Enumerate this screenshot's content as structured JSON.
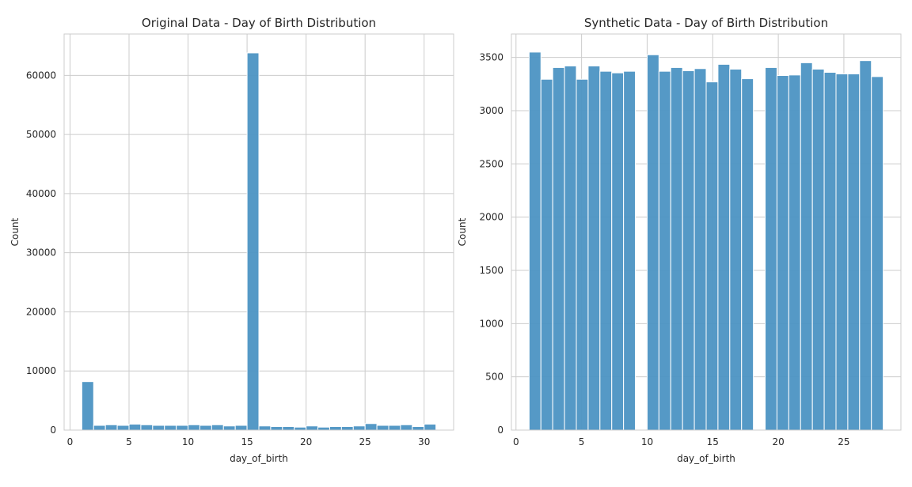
{
  "chart_data": [
    {
      "type": "bar",
      "title": "Original Data - Day of Birth Distribution",
      "xlabel": "day_of_birth",
      "ylabel": "Count",
      "xlim": [
        -0.5,
        32.5
      ],
      "ylim": [
        0,
        67000
      ],
      "xticks": [
        0,
        5,
        10,
        15,
        20,
        25,
        30
      ],
      "yticks": [
        0,
        10000,
        20000,
        30000,
        40000,
        50000,
        60000
      ],
      "grid": true,
      "color": "#4c93c3",
      "bins": [
        {
          "x0": 1.0,
          "x1": 2.0,
          "value": 8200
        },
        {
          "x0": 2.0,
          "x1": 3.0,
          "value": 800
        },
        {
          "x0": 3.0,
          "x1": 4.0,
          "value": 900
        },
        {
          "x0": 4.0,
          "x1": 5.0,
          "value": 800
        },
        {
          "x0": 5.0,
          "x1": 6.0,
          "value": 1000
        },
        {
          "x0": 6.0,
          "x1": 7.0,
          "value": 900
        },
        {
          "x0": 7.0,
          "x1": 8.0,
          "value": 800
        },
        {
          "x0": 8.0,
          "x1": 9.0,
          "value": 800
        },
        {
          "x0": 9.0,
          "x1": 10.0,
          "value": 800
        },
        {
          "x0": 10.0,
          "x1": 11.0,
          "value": 900
        },
        {
          "x0": 11.0,
          "x1": 12.0,
          "value": 800
        },
        {
          "x0": 12.0,
          "x1": 13.0,
          "value": 900
        },
        {
          "x0": 13.0,
          "x1": 14.0,
          "value": 700
        },
        {
          "x0": 14.0,
          "x1": 15.0,
          "value": 800
        },
        {
          "x0": 15.0,
          "x1": 16.0,
          "value": 63800
        },
        {
          "x0": 16.0,
          "x1": 17.0,
          "value": 700
        },
        {
          "x0": 17.0,
          "x1": 18.0,
          "value": 600
        },
        {
          "x0": 18.0,
          "x1": 19.0,
          "value": 600
        },
        {
          "x0": 19.0,
          "x1": 20.0,
          "value": 500
        },
        {
          "x0": 20.0,
          "x1": 21.0,
          "value": 700
        },
        {
          "x0": 21.0,
          "x1": 22.0,
          "value": 500
        },
        {
          "x0": 22.0,
          "x1": 23.0,
          "value": 600
        },
        {
          "x0": 23.0,
          "x1": 24.0,
          "value": 600
        },
        {
          "x0": 24.0,
          "x1": 25.0,
          "value": 700
        },
        {
          "x0": 25.0,
          "x1": 26.0,
          "value": 1100
        },
        {
          "x0": 26.0,
          "x1": 27.0,
          "value": 800
        },
        {
          "x0": 27.0,
          "x1": 28.0,
          "value": 800
        },
        {
          "x0": 28.0,
          "x1": 29.0,
          "value": 900
        },
        {
          "x0": 29.0,
          "x1": 30.0,
          "value": 600
        },
        {
          "x0": 30.0,
          "x1": 31.0,
          "value": 1000
        }
      ]
    },
    {
      "type": "bar",
      "title": "Synthetic Data - Day of Birth Distribution",
      "xlabel": "day_of_birth",
      "ylabel": "Count",
      "xlim": [
        -0.35,
        29.35
      ],
      "ylim": [
        0,
        3720
      ],
      "xticks": [
        0,
        5,
        10,
        15,
        20,
        25
      ],
      "yticks": [
        0,
        500,
        1000,
        1500,
        2000,
        2500,
        3000,
        3500
      ],
      "grid": true,
      "color": "#4c93c3",
      "bins": [
        {
          "x0": 1.0,
          "x1": 1.9,
          "value": 3550
        },
        {
          "x0": 1.9,
          "x1": 2.8,
          "value": 3295
        },
        {
          "x0": 2.8,
          "x1": 3.7,
          "value": 3405
        },
        {
          "x0": 3.7,
          "x1": 4.6,
          "value": 3420
        },
        {
          "x0": 4.6,
          "x1": 5.5,
          "value": 3295
        },
        {
          "x0": 5.5,
          "x1": 6.4,
          "value": 3420
        },
        {
          "x0": 6.4,
          "x1": 7.3,
          "value": 3370
        },
        {
          "x0": 7.3,
          "x1": 8.2,
          "value": 3355
        },
        {
          "x0": 8.2,
          "x1": 9.1,
          "value": 3370
        },
        {
          "x0": 9.1,
          "x1": 10.0,
          "value": 0
        },
        {
          "x0": 10.0,
          "x1": 10.9,
          "value": 3525
        },
        {
          "x0": 10.9,
          "x1": 11.8,
          "value": 3370
        },
        {
          "x0": 11.8,
          "x1": 12.7,
          "value": 3405
        },
        {
          "x0": 12.7,
          "x1": 13.6,
          "value": 3375
        },
        {
          "x0": 13.6,
          "x1": 14.5,
          "value": 3395
        },
        {
          "x0": 14.5,
          "x1": 15.4,
          "value": 3270
        },
        {
          "x0": 15.4,
          "x1": 16.3,
          "value": 3435
        },
        {
          "x0": 16.3,
          "x1": 17.2,
          "value": 3390
        },
        {
          "x0": 17.2,
          "x1": 18.1,
          "value": 3300
        },
        {
          "x0": 18.1,
          "x1": 19.0,
          "value": 0
        },
        {
          "x0": 19.0,
          "x1": 19.9,
          "value": 3405
        },
        {
          "x0": 19.9,
          "x1": 20.8,
          "value": 3330
        },
        {
          "x0": 20.8,
          "x1": 21.7,
          "value": 3335
        },
        {
          "x0": 21.7,
          "x1": 22.6,
          "value": 3450
        },
        {
          "x0": 22.6,
          "x1": 23.5,
          "value": 3390
        },
        {
          "x0": 23.5,
          "x1": 24.4,
          "value": 3360
        },
        {
          "x0": 24.4,
          "x1": 25.3,
          "value": 3345
        },
        {
          "x0": 25.3,
          "x1": 26.2,
          "value": 3345
        },
        {
          "x0": 26.2,
          "x1": 27.1,
          "value": 3470
        },
        {
          "x0": 27.1,
          "x1": 28.0,
          "value": 3320
        }
      ]
    }
  ]
}
